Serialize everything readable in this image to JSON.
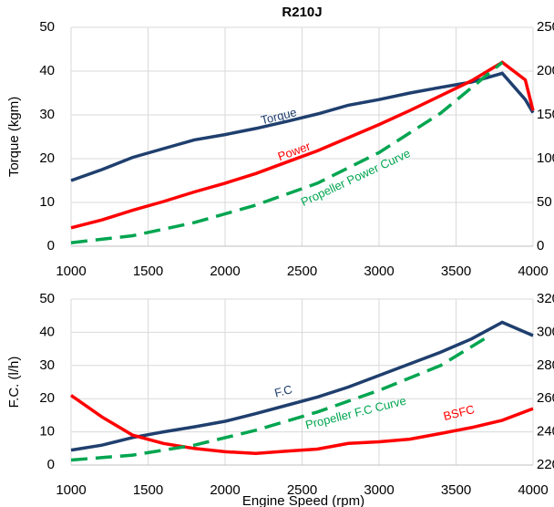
{
  "chart_data": [
    {
      "type": "line",
      "title": "R210J",
      "ylabel": "Torque (kgm)",
      "xlim": [
        1000,
        4000
      ],
      "xticks": [
        1000,
        1500,
        2000,
        2500,
        3000,
        3500,
        4000
      ],
      "ylim": [
        0,
        50
      ],
      "yticks": [
        0,
        10,
        20,
        30,
        40,
        50
      ],
      "y2lim": [
        0,
        250
      ],
      "y2ticks": [
        0,
        50,
        100,
        150,
        200,
        250
      ],
      "grid": true,
      "series": [
        {
          "name": "Torque",
          "color": "#1f3f6e",
          "dash": false,
          "axis": "y",
          "x": [
            1000,
            1200,
            1400,
            1600,
            1800,
            2000,
            2200,
            2400,
            2600,
            2800,
            3000,
            3200,
            3400,
            3600,
            3800,
            3950,
            4000
          ],
          "values": [
            15,
            17.5,
            20.3,
            22.3,
            24.3,
            25.5,
            26.9,
            28.5,
            30.2,
            32.2,
            33.5,
            35,
            36.3,
            37.5,
            39.5,
            33.5,
            30.5
          ]
        },
        {
          "name": "Power",
          "color": "#ff0000",
          "dash": false,
          "axis": "y2",
          "x": [
            1000,
            1200,
            1400,
            1600,
            1800,
            2000,
            2200,
            2400,
            2600,
            2800,
            3000,
            3200,
            3400,
            3600,
            3800,
            3950,
            4000
          ],
          "values": [
            21,
            30,
            41,
            51,
            62,
            72,
            83,
            96,
            109,
            124,
            139,
            155,
            172,
            189,
            210,
            190,
            155
          ]
        },
        {
          "name": "Propeller Power Curve",
          "color": "#00a550",
          "dash": true,
          "axis": "y2",
          "x": [
            1000,
            1400,
            1800,
            2200,
            2600,
            3000,
            3400,
            3800
          ],
          "values": [
            4,
            12,
            27,
            47,
            72,
            107,
            152,
            210
          ]
        }
      ],
      "annotations": [
        {
          "text": "Torque",
          "x": 2350,
          "y": 29.5,
          "rotation": -14,
          "series": 0
        },
        {
          "text": "Power",
          "x": 2450,
          "y": 21.5,
          "rotation": -20,
          "series": 1
        },
        {
          "text": "Propeller Power Curve",
          "x": 2850,
          "y": 15.5,
          "rotation": -25,
          "series": 2
        }
      ]
    },
    {
      "type": "line",
      "ylabel": "F.C. (l/h)",
      "xlabel": "Engine Speed (rpm)",
      "xlim": [
        1000,
        4000
      ],
      "xticks": [
        1000,
        1500,
        2000,
        2500,
        3000,
        3500,
        4000
      ],
      "ylim": [
        0,
        50
      ],
      "yticks": [
        0,
        10,
        20,
        30,
        40,
        50
      ],
      "y2lim": [
        220,
        320
      ],
      "y2ticks": [
        220,
        240,
        260,
        280,
        300,
        320
      ],
      "grid": true,
      "series": [
        {
          "name": "F.C",
          "color": "#1f3f6e",
          "dash": false,
          "axis": "y",
          "x": [
            1000,
            1200,
            1400,
            1600,
            1800,
            2000,
            2200,
            2400,
            2600,
            2800,
            3000,
            3200,
            3400,
            3600,
            3800,
            4000
          ],
          "values": [
            4.5,
            6,
            8.3,
            10,
            11.5,
            13.2,
            15.5,
            18,
            20.5,
            23.5,
            27,
            30.5,
            34,
            38,
            43,
            39
          ]
        },
        {
          "name": "BSFC",
          "color": "#ff0000",
          "dash": false,
          "axis": "y2",
          "x": [
            1000,
            1200,
            1400,
            1600,
            1800,
            2000,
            2200,
            2400,
            2600,
            2800,
            3000,
            3200,
            3400,
            3600,
            3800,
            4000
          ],
          "values": [
            262,
            249,
            238,
            233,
            230,
            228,
            227,
            228.4,
            229.6,
            233,
            234,
            235.6,
            239,
            242.6,
            247,
            254
          ]
        },
        {
          "name": "Propeller F.C Curve",
          "color": "#00a550",
          "dash": true,
          "axis": "y",
          "x": [
            1000,
            1400,
            1800,
            2200,
            2600,
            3000,
            3400,
            3700
          ],
          "values": [
            1.5,
            3,
            6,
            10.5,
            16,
            22.5,
            30,
            38.5
          ]
        }
      ],
      "annotations": [
        {
          "text": "F.C",
          "x": 2380,
          "y": 22,
          "rotation": -14,
          "series": 0
        },
        {
          "text": "BSFC",
          "x": 3520,
          "y": 15.5,
          "rotation": -14,
          "series": 1
        },
        {
          "text": "Propeller F.C Curve",
          "x": 2850,
          "y": 15.5,
          "rotation": -14,
          "series": 2
        }
      ]
    }
  ]
}
